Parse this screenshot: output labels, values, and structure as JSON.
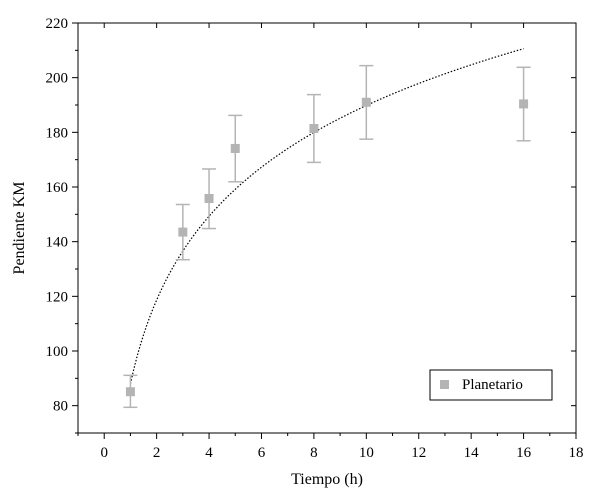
{
  "chart_data": {
    "type": "scatter",
    "title": "",
    "xlabel": "Tiempo (h)",
    "ylabel": "Pendiente KM",
    "xlim": [
      -1,
      18
    ],
    "ylim": [
      70,
      220
    ],
    "xticks": [
      0,
      2,
      4,
      6,
      8,
      10,
      12,
      14,
      16,
      18
    ],
    "yticks": [
      80,
      100,
      120,
      140,
      160,
      180,
      200,
      220
    ],
    "grid": false,
    "legend_position": "bottom-right",
    "series": [
      {
        "name": "Planetario",
        "marker": "square",
        "color": "#b4b4b4",
        "x": [
          1,
          3,
          4,
          5,
          8,
          10,
          16
        ],
        "y": [
          85.1,
          143.5,
          155.8,
          174.1,
          181.4,
          191.0,
          190.4
        ],
        "error_high": [
          91.1,
          153.6,
          166.6,
          186.2,
          193.8,
          204.4,
          203.8
        ],
        "error_low": [
          79.4,
          133.4,
          144.8,
          161.9,
          169.0,
          177.5,
          176.9
        ]
      }
    ],
    "fit_curve": {
      "style": "dotted",
      "color": "#000000",
      "type": "logarithmic",
      "x_range": [
        1,
        16
      ],
      "y_start": 88.0,
      "y_end": 210.6
    }
  }
}
